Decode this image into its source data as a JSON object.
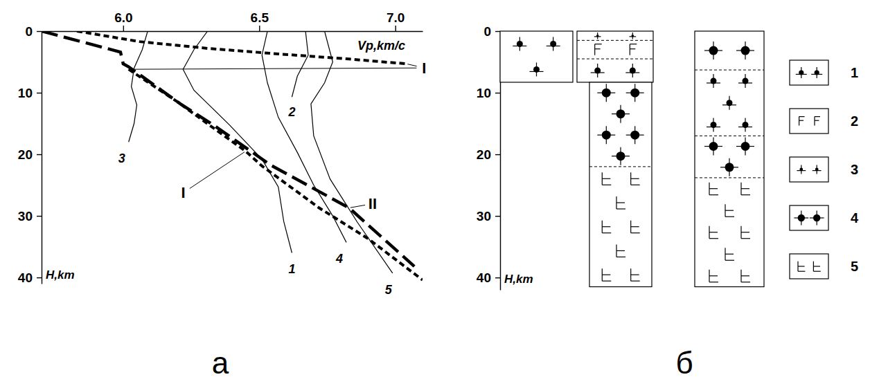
{
  "chart_data": [
    {
      "type": "line",
      "panel": "а",
      "x_label": "Vp,km/c",
      "y_label": "H,km",
      "xlim": [
        5.7,
        7.1
      ],
      "xticks": [
        {
          "value": 6,
          "label": "6.0"
        },
        6.5,
        {
          "value": 7,
          "label": "7.0"
        }
      ],
      "ylim": [
        0,
        41
      ],
      "yticks": [
        0,
        10,
        20,
        30,
        40
      ],
      "grid": false,
      "series": [
        {
          "name": "1",
          "color": "#000000",
          "line_style": "solid",
          "x": [
            6.31,
            6.26,
            6.22,
            6.26,
            6.39,
            6.51,
            6.57,
            6.59,
            6.62
          ],
          "values": [
            0,
            3,
            6.2,
            9.6,
            15.2,
            20.8,
            25.3,
            30.9,
            36
          ]
        },
        {
          "name": "2",
          "color": "#000000",
          "line_style": "solid",
          "x": [
            6.67,
            6.68,
            6.64,
            6.62
          ],
          "values": [
            0,
            3.9,
            7.3,
            10.7
          ]
        },
        {
          "name": "3",
          "color": "#000000",
          "line_style": "solid",
          "x": [
            6.09,
            6.07,
            6.04,
            6.03,
            6.05,
            6.04,
            6.02
          ],
          "values": [
            0,
            3,
            6,
            9,
            12,
            15,
            18
          ]
        },
        {
          "name": "4",
          "color": "#000000",
          "line_style": "solid",
          "x": [
            6.53,
            6.51,
            6.53,
            6.57,
            6.64,
            6.7,
            6.77,
            6.82
          ],
          "values": [
            0,
            3.9,
            8.4,
            14,
            19.7,
            25,
            30,
            34.3
          ]
        },
        {
          "name": "5",
          "color": "#000000",
          "line_style": "solid",
          "x": [
            6.74,
            6.77,
            6.74,
            6.69,
            6.7,
            6.76,
            6.86,
            6.99
          ],
          "values": [
            0,
            5,
            8.4,
            11.8,
            17,
            24,
            31,
            39.3
          ]
        },
        {
          "name": "I",
          "color": "#000000",
          "line_style": "dashed",
          "x": [
            5.83,
            6.06,
            6.31,
            6.57,
            6.82,
            7.04,
            null,
            6.02,
            6.2,
            6.34,
            6.45,
            6.51,
            6.72,
            6.9,
            7.1
          ],
          "values": [
            0,
            1.7,
            2.8,
            3.7,
            4.5,
            5.3,
            null,
            6.2,
            11.5,
            16,
            19.5,
            21.9,
            28.7,
            33.7,
            40.4
          ]
        },
        {
          "name": "II",
          "color": "#000000",
          "line_style": "longdash",
          "x": [
            5.7,
            5.99,
            6.0,
            6.02,
            6.21,
            6.34,
            6.54,
            6.83,
            7.07
          ],
          "values": [
            0,
            3.4,
            5.3,
            5.8,
            11.8,
            15.5,
            21.7,
            28.7,
            38.2
          ]
        }
      ]
    },
    {
      "type": "section",
      "panel": "б",
      "y_label": "H,km",
      "ylim": [
        0,
        42
      ],
      "yticks": [
        0,
        10,
        20,
        30,
        40
      ],
      "legend": "right",
      "rocks": [
        "1",
        "2",
        "3",
        "4",
        "5"
      ],
      "columns": [
        {
          "layers": [
            {
              "top": 0,
              "bottom": 8.3,
              "rock": "1"
            }
          ]
        },
        {
          "layers": [
            {
              "top": 0,
              "bottom": 1.5,
              "rock": "3"
            },
            {
              "top": 1.5,
              "bottom": 4.5,
              "rock": "2"
            },
            {
              "top": 4.5,
              "bottom": 8.3,
              "rock": "1"
            }
          ]
        },
        {
          "layers": [
            {
              "top": 8.3,
              "bottom": 22,
              "rock": "4"
            },
            {
              "top": 22,
              "bottom": 41.5,
              "rock": "5"
            }
          ]
        },
        {
          "layers": [
            {
              "top": 0,
              "bottom": 6.3,
              "rock": "4"
            },
            {
              "top": 6.3,
              "bottom": 17,
              "rock": "1"
            },
            {
              "top": 17,
              "bottom": 23.8,
              "rock": "4"
            },
            {
              "top": 23.8,
              "bottom": 41.5,
              "rock": "5"
            }
          ]
        }
      ]
    }
  ]
}
